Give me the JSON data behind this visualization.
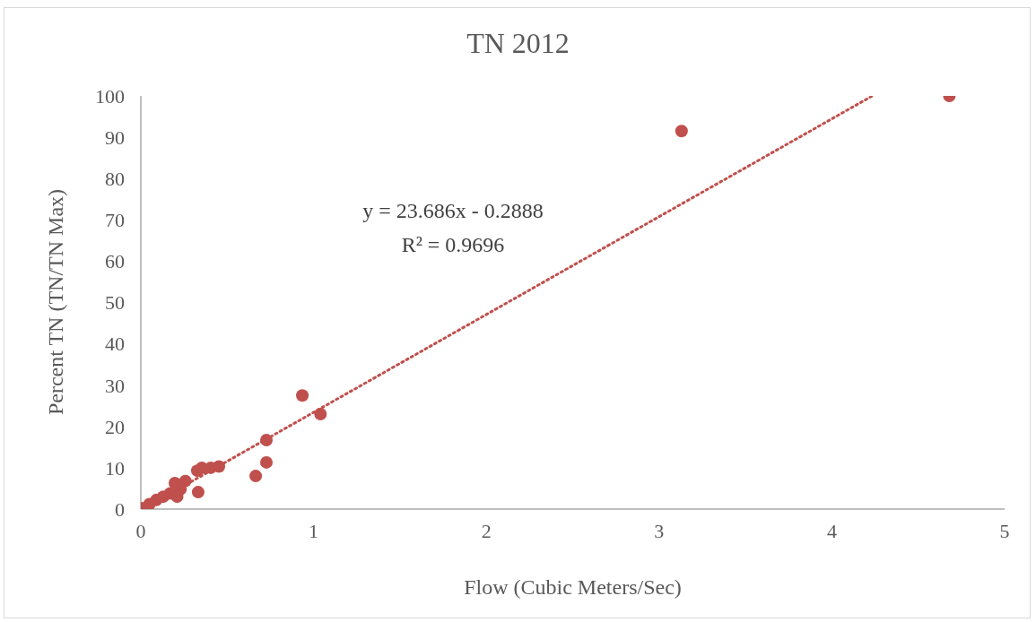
{
  "chart_data": {
    "type": "scatter",
    "title": "TN 2012",
    "xlabel": "Flow (Cubic Meters/Sec)",
    "ylabel": "Percent TN (TN/TN Max)",
    "annotations": [
      "y = 23.686x - 0.2888",
      "R² = 0.9696"
    ],
    "xlim": [
      0,
      5
    ],
    "xticks": [
      0,
      1,
      2,
      3,
      4,
      5
    ],
    "ylim": [
      0,
      100
    ],
    "yticks": [
      0,
      10,
      20,
      30,
      40,
      50,
      60,
      70,
      80,
      90,
      100
    ],
    "grid": false,
    "legend": false,
    "marker": "circle",
    "series": [
      {
        "color": "#c0504d",
        "x": [
          0.005,
          0.05,
          0.09,
          0.13,
          0.17,
          0.21,
          0.23,
          0.197,
          0.258,
          0.327,
          0.332,
          0.353,
          0.405,
          0.452,
          0.665,
          0.727,
          0.727,
          0.935,
          1.04,
          3.13,
          4.68
        ],
        "values": [
          0.2,
          1.2,
          2.2,
          3.0,
          3.8,
          3.0,
          4.8,
          6.3,
          6.8,
          9.3,
          4.1,
          10,
          10,
          10.3,
          8.0,
          11.3,
          16.7,
          27.5,
          23,
          91.5,
          100
        ]
      },
      {
        "type": "line",
        "color": "#c0504d",
        "marker": "none",
        "line_style": "dotted",
        "x": [
          0.02,
          4.23
        ],
        "values": [
          0.2,
          99.9
        ]
      }
    ]
  }
}
